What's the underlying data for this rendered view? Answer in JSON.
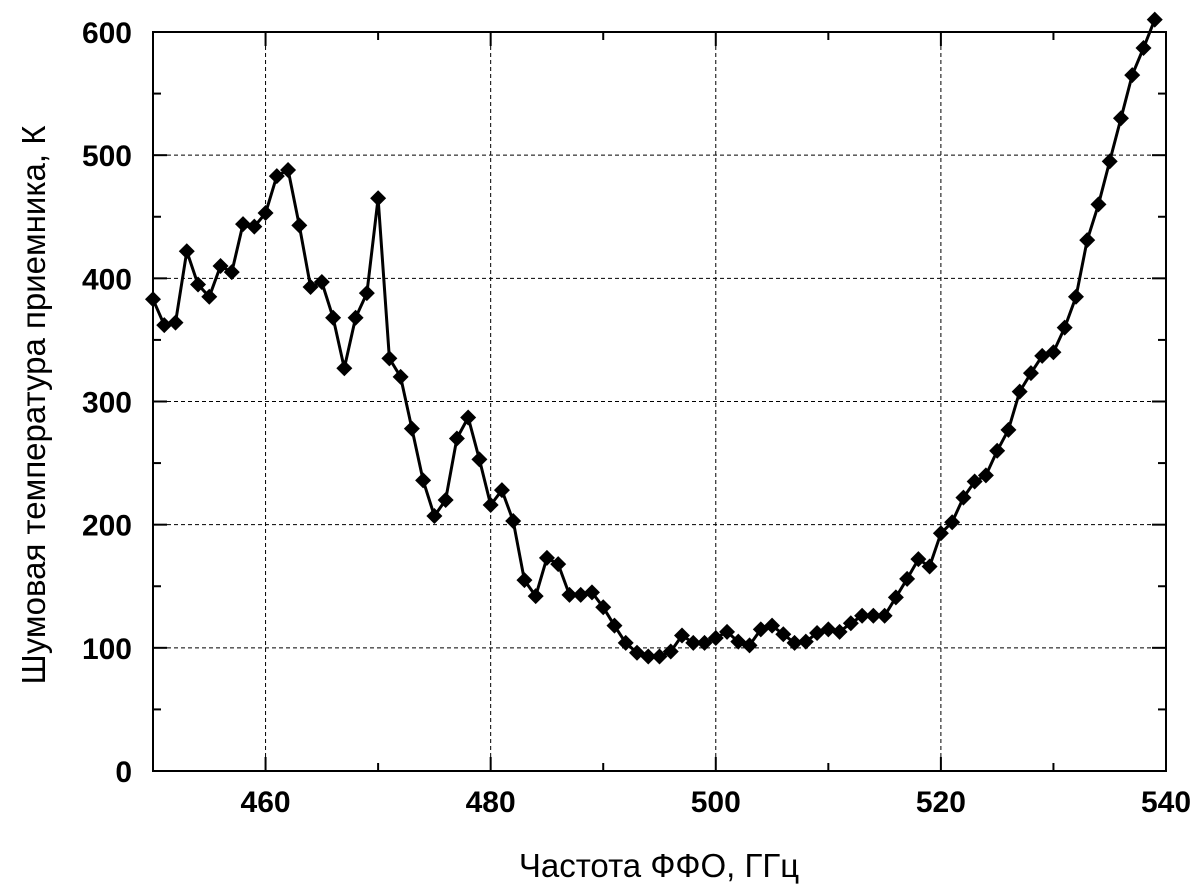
{
  "chart_data": {
    "type": "line",
    "title": "",
    "xlabel": "Частота ФФО, ГГц",
    "ylabel": "Шумовая температура приемника, К",
    "xlim": [
      450,
      540
    ],
    "ylim": [
      0,
      600
    ],
    "x_ticks": [
      460,
      480,
      500,
      520,
      540
    ],
    "y_ticks": [
      0,
      100,
      200,
      300,
      400,
      500,
      600
    ],
    "grid": true,
    "legend": "none",
    "colors": {
      "series": "#000000",
      "grid": "#000000",
      "background": "#ffffff"
    },
    "series": [
      {
        "marker": "diamond",
        "x": [
          450,
          451,
          452,
          453,
          454,
          455,
          456,
          457,
          458,
          459,
          460,
          461,
          462,
          463,
          464,
          465,
          466,
          467,
          468,
          469,
          470,
          471,
          472,
          473,
          474,
          475,
          476,
          477,
          478,
          479,
          480,
          481,
          482,
          483,
          484,
          485,
          486,
          487,
          488,
          489,
          490,
          491,
          492,
          493,
          494,
          495,
          496,
          497,
          498,
          499,
          500,
          501,
          502,
          503,
          504,
          505,
          506,
          507,
          508,
          509,
          510,
          511,
          512,
          513,
          514,
          515,
          516,
          517,
          518,
          519,
          520,
          521,
          522,
          523,
          524,
          525,
          526,
          527,
          528,
          529,
          530,
          531,
          532,
          533,
          534,
          535,
          536,
          537,
          538,
          539
        ],
        "y": [
          383,
          362,
          364,
          422,
          395,
          385,
          410,
          405,
          444,
          442,
          453,
          483,
          488,
          443,
          393,
          397,
          368,
          327,
          368,
          388,
          465,
          335,
          320,
          278,
          236,
          207,
          220,
          270,
          287,
          253,
          216,
          228,
          203,
          155,
          142,
          173,
          168,
          143,
          143,
          145,
          133,
          118,
          104,
          96,
          93,
          93,
          97,
          110,
          104,
          104,
          108,
          113,
          105,
          102,
          115,
          118,
          111,
          104,
          105,
          112,
          115,
          113,
          120,
          126,
          126,
          126,
          141,
          156,
          172,
          166,
          193,
          202,
          222,
          235,
          240,
          260,
          277,
          308,
          323,
          337,
          340,
          360,
          385,
          431,
          460,
          495,
          530,
          565,
          587,
          610
        ]
      }
    ]
  }
}
